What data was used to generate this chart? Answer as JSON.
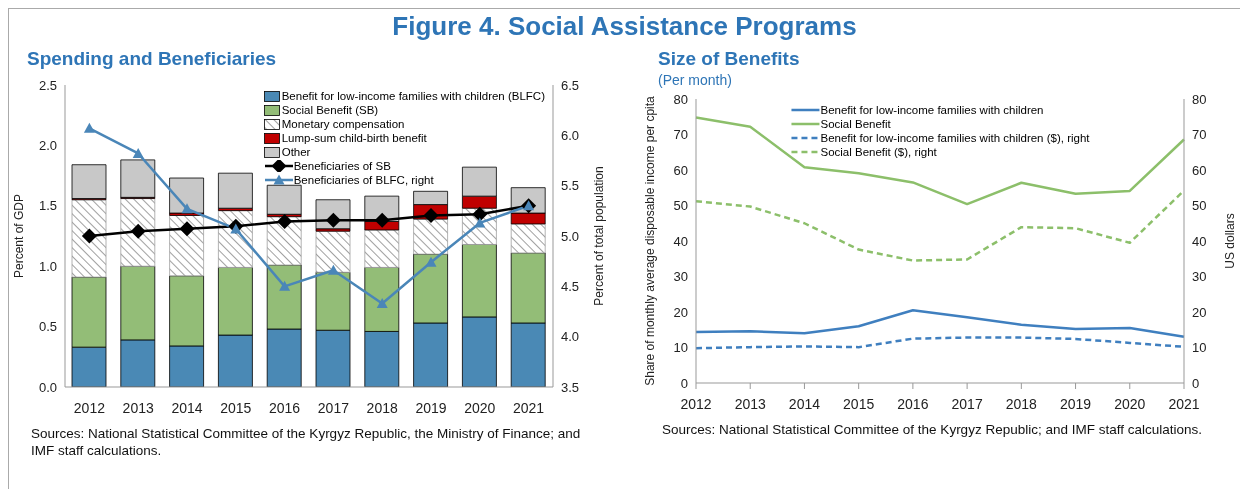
{
  "chart_data": [
    {
      "type": "other",
      "title": "Figure 4. Social Assistance Programs"
    },
    {
      "type": "bar",
      "title": "Spending and Beneficiaries",
      "ylabel": "Percent of GDP",
      "y2label": "Percent of total population",
      "stacked": true,
      "legend": "top right",
      "categories": [
        "2012",
        "2013",
        "2014",
        "2015",
        "2016",
        "2017",
        "2018",
        "2019",
        "2020",
        "2021"
      ],
      "series": [
        {
          "name": "Benefit for low-income families with children (BLFC)",
          "color": "#4a89b5",
          "values": [
            0.33,
            0.39,
            0.34,
            0.43,
            0.48,
            0.47,
            0.46,
            0.53,
            0.58,
            0.53
          ]
        },
        {
          "name": "Social Benefit (SB)",
          "color": "#93bd77",
          "values": [
            0.58,
            0.61,
            0.58,
            0.56,
            0.53,
            0.48,
            0.53,
            0.57,
            0.6,
            0.58
          ]
        },
        {
          "name": "Monetary compensation",
          "color": "#a0a0a0",
          "values": [
            0.64,
            0.56,
            0.5,
            0.47,
            0.4,
            0.34,
            0.31,
            0.29,
            0.3,
            0.24
          ]
        },
        {
          "name": "Lump-sum child-birth benefit",
          "color": "#c00000",
          "values": [
            0.01,
            0.01,
            0.02,
            0.02,
            0.02,
            0.02,
            0.07,
            0.12,
            0.1,
            0.09
          ]
        },
        {
          "name": "Other",
          "color": "#c8c8c8",
          "values": [
            0.28,
            0.31,
            0.29,
            0.29,
            0.24,
            0.24,
            0.21,
            0.11,
            0.24,
            0.21
          ]
        },
        {
          "name": "Beneficiaries of SB",
          "type": "line",
          "marker": "diamond",
          "color": "#000000",
          "values": [
            1.25,
            1.29,
            1.31,
            1.33,
            1.37,
            1.38,
            1.38,
            1.42,
            1.43,
            1.5
          ]
        },
        {
          "name": "Beneficiaries of BLFC, right",
          "type": "line",
          "marker": "triangle",
          "axis": "y2",
          "color": "#4a86b8",
          "values": [
            6.07,
            5.82,
            5.27,
            5.07,
            4.5,
            4.66,
            4.33,
            4.74,
            5.13,
            5.3
          ]
        }
      ],
      "ylim": [
        0,
        2.5
      ],
      "yticks": [
        {
          "value": 0,
          "label": "0.0"
        },
        {
          "value": 0.5,
          "label": "0.5"
        },
        {
          "value": 1,
          "label": "1.0"
        },
        {
          "value": 1.5,
          "label": "1.5"
        },
        {
          "value": 2,
          "label": "2.0"
        },
        {
          "value": 2.5,
          "label": "2.5"
        }
      ],
      "y2lim": [
        3.5,
        6.5
      ],
      "y2ticks": [
        {
          "value": 3.5,
          "label": "3.5"
        },
        {
          "value": 4,
          "label": "4.0"
        },
        {
          "value": 4.5,
          "label": "4.5"
        },
        {
          "value": 5,
          "label": "5.0"
        },
        {
          "value": 5.5,
          "label": "5.5"
        },
        {
          "value": 6,
          "label": "6.0"
        },
        {
          "value": 6.5,
          "label": "6.5"
        }
      ],
      "annotations": [
        "Sources: National Statistical Committee of the Kyrgyz Republic, the Ministry of Finance; and IMF staff calculations."
      ]
    },
    {
      "type": "line",
      "title": "Size of Benefits",
      "subtitle": "(Per month)",
      "ylabel": "Share of monthly average disposable income per cpita",
      "y2label": "US dollars",
      "legend": "top",
      "categories": [
        "2012",
        "2013",
        "2014",
        "2015",
        "2016",
        "2017",
        "2018",
        "2019",
        "2020",
        "2021"
      ],
      "series": [
        {
          "name": "Benefit for low-income families with children",
          "color": "#3f7fbf",
          "line_style": "solid",
          "values": [
            14.4,
            14.6,
            14.0,
            16.0,
            20.5,
            18.5,
            16.4,
            15.2,
            15.5,
            13.0
          ]
        },
        {
          "name": "Social Benefit",
          "color": "#8cbf6a",
          "line_style": "solid",
          "values": [
            74.8,
            72.2,
            60.8,
            59.1,
            56.5,
            50.4,
            56.4,
            53.3,
            54.1,
            68.6
          ]
        },
        {
          "name": "Benefit for low-income families with children ($), right",
          "color": "#3f7fbf",
          "line_style": "dashed",
          "axis": "y2",
          "values": [
            9.8,
            10.1,
            10.3,
            10.1,
            12.5,
            12.8,
            12.8,
            12.4,
            11.3,
            10.2
          ]
        },
        {
          "name": "Social Benefit ($), right",
          "color": "#8cbf6a",
          "line_style": "dashed",
          "axis": "y2",
          "values": [
            51.2,
            49.7,
            45.0,
            37.6,
            34.5,
            34.8,
            43.9,
            43.6,
            39.5,
            54.2
          ]
        }
      ],
      "ylim": [
        0,
        80
      ],
      "yticks": [
        0,
        10,
        20,
        30,
        40,
        50,
        60,
        70,
        80
      ],
      "y2lim": [
        0,
        80
      ],
      "y2ticks": [
        0,
        10,
        20,
        30,
        40,
        50,
        60,
        70,
        80
      ],
      "annotations": [
        "Sources: National Statistical Committee of the Kyrgyz Republic; and IMF staff calculations."
      ]
    }
  ]
}
